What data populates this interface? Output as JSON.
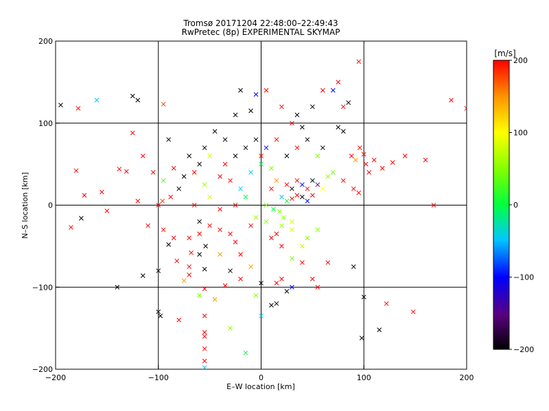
{
  "chart_data": {
    "type": "scatter",
    "title": "Tromsø 20171204 22:48:00–22:49:43",
    "subtitle": "RwPretec (8p) EXPERIMENTAL SKYMAP",
    "xlabel": "E–W location [km]",
    "ylabel": "N–S location [km]",
    "xlim": [
      -200,
      200
    ],
    "ylim": [
      -200,
      200
    ],
    "x_ticks": [
      -200,
      -100,
      0,
      100,
      200
    ],
    "y_ticks": [
      -200,
      -100,
      0,
      100,
      200
    ],
    "grid": true,
    "colorbar": {
      "label": "[m/s]",
      "range": [
        -200,
        200
      ],
      "ticks": [
        -200,
        -100,
        0,
        100,
        200
      ],
      "colormap": "rainbow (black–purple–blue–cyan–green–yellow–red)"
    },
    "marker_styles": [
      "cross (x)",
      "dot"
    ],
    "points": [
      {
        "x": -178,
        "y": 118,
        "v": 200,
        "m": "x"
      },
      {
        "x": -160,
        "y": 128,
        "v": -50,
        "m": "x"
      },
      {
        "x": -195,
        "y": 122,
        "v": -200,
        "m": "x"
      },
      {
        "x": -125,
        "y": 133,
        "v": -200,
        "m": "x"
      },
      {
        "x": -120,
        "y": 128,
        "v": -200,
        "m": "x"
      },
      {
        "x": -95,
        "y": 123,
        "v": 180,
        "m": "x"
      },
      {
        "x": -125,
        "y": 88,
        "v": 200,
        "m": "x"
      },
      {
        "x": -180,
        "y": 42,
        "v": 200,
        "m": "x"
      },
      {
        "x": -172,
        "y": 12,
        "v": 200,
        "m": "x"
      },
      {
        "x": -155,
        "y": 16,
        "v": 200,
        "m": "x"
      },
      {
        "x": -138,
        "y": 44,
        "v": 200,
        "m": "x"
      },
      {
        "x": -131,
        "y": 41,
        "v": 200,
        "m": "x"
      },
      {
        "x": -185,
        "y": -27,
        "v": 200,
        "m": "x"
      },
      {
        "x": -175,
        "y": -16,
        "v": -200,
        "m": "x"
      },
      {
        "x": -150,
        "y": -7,
        "v": 200,
        "m": "x"
      },
      {
        "x": -140,
        "y": -100,
        "v": -200,
        "m": "x"
      },
      {
        "x": -115,
        "y": -86,
        "v": -200,
        "m": "x"
      },
      {
        "x": -100,
        "y": -130,
        "v": -200,
        "m": "x"
      },
      {
        "x": -98,
        "y": -135,
        "v": -200,
        "m": "x"
      },
      {
        "x": -96,
        "y": 5,
        "v": 180,
        "m": "x"
      },
      {
        "x": -75,
        "y": -92,
        "v": 150,
        "m": "x"
      },
      {
        "x": -70,
        "y": -85,
        "v": 200,
        "m": "x"
      },
      {
        "x": -68,
        "y": -58,
        "v": 200,
        "m": "x"
      },
      {
        "x": -82,
        "y": -68,
        "v": 200,
        "m": "x"
      },
      {
        "x": -90,
        "y": -48,
        "v": -200,
        "m": "x"
      },
      {
        "x": -55,
        "y": -78,
        "v": -200,
        "m": "x"
      },
      {
        "x": -54,
        "y": -50,
        "v": -200,
        "m": "x"
      },
      {
        "x": -60,
        "y": -20,
        "v": -200,
        "m": "x"
      },
      {
        "x": -55,
        "y": 25,
        "v": 60,
        "m": "x"
      },
      {
        "x": -40,
        "y": 35,
        "v": 200,
        "m": "x"
      },
      {
        "x": -35,
        "y": 50,
        "v": 200,
        "m": "x"
      },
      {
        "x": -50,
        "y": 60,
        "v": 80,
        "m": "x"
      },
      {
        "x": -45,
        "y": 90,
        "v": -200,
        "m": "x"
      },
      {
        "x": -25,
        "y": 110,
        "v": -200,
        "m": "x"
      },
      {
        "x": -10,
        "y": 115,
        "v": -200,
        "m": "x"
      },
      {
        "x": -20,
        "y": 140,
        "v": -200,
        "m": "x"
      },
      {
        "x": -5,
        "y": 135,
        "v": -100,
        "m": "x"
      },
      {
        "x": 5,
        "y": 140,
        "v": 200,
        "m": "x"
      },
      {
        "x": 20,
        "y": 120,
        "v": 200,
        "m": "x"
      },
      {
        "x": 35,
        "y": 110,
        "v": -200,
        "m": "x"
      },
      {
        "x": 50,
        "y": 120,
        "v": -200,
        "m": "x"
      },
      {
        "x": 60,
        "y": 140,
        "v": 200,
        "m": "x"
      },
      {
        "x": 70,
        "y": 140,
        "v": -100,
        "m": "x"
      },
      {
        "x": 80,
        "y": 120,
        "v": 200,
        "m": "x"
      },
      {
        "x": 85,
        "y": 125,
        "v": -200,
        "m": "x"
      },
      {
        "x": 95,
        "y": 175,
        "v": 200,
        "m": "x"
      },
      {
        "x": 75,
        "y": 150,
        "v": 200,
        "m": "x"
      },
      {
        "x": 185,
        "y": 128,
        "v": 200,
        "m": "x"
      },
      {
        "x": 200,
        "y": 118,
        "v": 200,
        "m": "x"
      },
      {
        "x": 88,
        "y": 60,
        "v": 200,
        "m": "x"
      },
      {
        "x": 92,
        "y": 55,
        "v": 150,
        "m": "x"
      },
      {
        "x": 96,
        "y": 70,
        "v": 200,
        "m": "x"
      },
      {
        "x": 100,
        "y": 62,
        "v": 200,
        "m": "x"
      },
      {
        "x": 102,
        "y": 50,
        "v": 200,
        "m": "x"
      },
      {
        "x": 105,
        "y": 40,
        "v": 200,
        "m": "x"
      },
      {
        "x": 110,
        "y": 55,
        "v": 200,
        "m": "x"
      },
      {
        "x": 118,
        "y": 45,
        "v": 200,
        "m": "x"
      },
      {
        "x": 128,
        "y": 52,
        "v": 200,
        "m": "x"
      },
      {
        "x": 140,
        "y": 60,
        "v": 200,
        "m": "x"
      },
      {
        "x": 160,
        "y": 55,
        "v": 200,
        "m": "x"
      },
      {
        "x": 80,
        "y": 30,
        "v": 200,
        "m": "x"
      },
      {
        "x": 90,
        "y": 20,
        "v": 200,
        "m": "x"
      },
      {
        "x": 95,
        "y": 15,
        "v": 200,
        "m": "x"
      },
      {
        "x": 168,
        "y": 0,
        "v": 200,
        "m": "x"
      },
      {
        "x": 100,
        "y": -112,
        "v": -200,
        "m": "x"
      },
      {
        "x": 98,
        "y": -162,
        "v": -200,
        "m": "x"
      },
      {
        "x": 115,
        "y": -152,
        "v": -200,
        "m": "x"
      },
      {
        "x": 122,
        "y": -120,
        "v": 200,
        "m": "x"
      },
      {
        "x": 148,
        "y": -130,
        "v": 200,
        "m": "x"
      },
      {
        "x": 90,
        "y": -75,
        "v": -200,
        "m": "x"
      },
      {
        "x": 65,
        "y": -70,
        "v": 200,
        "m": "x"
      },
      {
        "x": 40,
        "y": -70,
        "v": 200,
        "m": "x"
      },
      {
        "x": 30,
        "y": -65,
        "v": 50,
        "m": "x"
      },
      {
        "x": 20,
        "y": -90,
        "v": 200,
        "m": "x"
      },
      {
        "x": 25,
        "y": -105,
        "v": -200,
        "m": "x"
      },
      {
        "x": 30,
        "y": -100,
        "v": -100,
        "m": "x"
      },
      {
        "x": 10,
        "y": -122,
        "v": -200,
        "m": "x"
      },
      {
        "x": 0,
        "y": -135,
        "v": -50,
        "m": "x"
      },
      {
        "x": -5,
        "y": -110,
        "v": 50,
        "m": "x"
      },
      {
        "x": -15,
        "y": -180,
        "v": 0,
        "m": "x"
      },
      {
        "x": -30,
        "y": -150,
        "v": 60,
        "m": "x"
      },
      {
        "x": -55,
        "y": -135,
        "v": 200,
        "m": "x"
      },
      {
        "x": -55,
        "y": -155,
        "v": 200,
        "m": "x"
      },
      {
        "x": -55,
        "y": -160,
        "v": 200,
        "m": "x"
      },
      {
        "x": -55,
        "y": -175,
        "v": 200,
        "m": "x"
      },
      {
        "x": -55,
        "y": -190,
        "v": 200,
        "m": "x"
      },
      {
        "x": -55,
        "y": -198,
        "v": -50,
        "m": "x"
      },
      {
        "x": -55,
        "y": -102,
        "v": 200,
        "m": "x"
      },
      {
        "x": -60,
        "y": -110,
        "v": 50,
        "m": "x"
      },
      {
        "x": -45,
        "y": -115,
        "v": 150,
        "m": "x"
      },
      {
        "x": -35,
        "y": -98,
        "v": 200,
        "m": "x"
      },
      {
        "x": -10,
        "y": -75,
        "v": 150,
        "m": "x"
      },
      {
        "x": -20,
        "y": -60,
        "v": 200,
        "m": "x"
      },
      {
        "x": -25,
        "y": -45,
        "v": 200,
        "m": "x"
      },
      {
        "x": -30,
        "y": -35,
        "v": 200,
        "m": "x"
      },
      {
        "x": 10,
        "y": -40,
        "v": 200,
        "m": "x"
      },
      {
        "x": 15,
        "y": -35,
        "v": 200,
        "m": "x"
      },
      {
        "x": 20,
        "y": -50,
        "v": 200,
        "m": "x"
      },
      {
        "x": 40,
        "y": -50,
        "v": 80,
        "m": "x"
      },
      {
        "x": 45,
        "y": -40,
        "v": 50,
        "m": "x"
      },
      {
        "x": 55,
        "y": -30,
        "v": 50,
        "m": "x"
      },
      {
        "x": 30,
        "y": -30,
        "v": 80,
        "m": "x"
      },
      {
        "x": 20,
        "y": -25,
        "v": 60,
        "m": "x"
      },
      {
        "x": 5,
        "y": -20,
        "v": 50,
        "m": "x"
      },
      {
        "x": -5,
        "y": -15,
        "v": 60,
        "m": "x"
      },
      {
        "x": -10,
        "y": -25,
        "v": 200,
        "m": "x"
      },
      {
        "x": 25,
        "y": 25,
        "v": 200,
        "m": "x"
      },
      {
        "x": 30,
        "y": 20,
        "v": -200,
        "m": "x"
      },
      {
        "x": 35,
        "y": 30,
        "v": 200,
        "m": "x"
      },
      {
        "x": 40,
        "y": 25,
        "v": -100,
        "m": "x"
      },
      {
        "x": 45,
        "y": 20,
        "v": 200,
        "m": "x"
      },
      {
        "x": 50,
        "y": 30,
        "v": -200,
        "m": "x"
      },
      {
        "x": 55,
        "y": 25,
        "v": -150,
        "m": "x"
      },
      {
        "x": 15,
        "y": 30,
        "v": 150,
        "m": "x"
      },
      {
        "x": 10,
        "y": 20,
        "v": 200,
        "m": "x"
      },
      {
        "x": 20,
        "y": 10,
        "v": -50,
        "m": "x"
      },
      {
        "x": 25,
        "y": 5,
        "v": 0,
        "m": "x"
      },
      {
        "x": 30,
        "y": 8,
        "v": 200,
        "m": "x"
      },
      {
        "x": 35,
        "y": 12,
        "v": 200,
        "m": "x"
      },
      {
        "x": 40,
        "y": 10,
        "v": -200,
        "m": "x"
      },
      {
        "x": 45,
        "y": 5,
        "v": -100,
        "m": "x"
      },
      {
        "x": 50,
        "y": 12,
        "v": 200,
        "m": "x"
      },
      {
        "x": 60,
        "y": 20,
        "v": 100,
        "m": "x"
      },
      {
        "x": 65,
        "y": 35,
        "v": 60,
        "m": "x"
      },
      {
        "x": 70,
        "y": 40,
        "v": 40,
        "m": "x"
      },
      {
        "x": 5,
        "y": 0,
        "v": 50,
        "m": "x"
      },
      {
        "x": 12,
        "y": -5,
        "v": 0,
        "m": "x"
      },
      {
        "x": 18,
        "y": -8,
        "v": 50,
        "m": "x"
      },
      {
        "x": 22,
        "y": -15,
        "v": 60,
        "m": "x"
      },
      {
        "x": 30,
        "y": -20,
        "v": 80,
        "m": "x"
      },
      {
        "x": -15,
        "y": 10,
        "v": 0,
        "m": "x"
      },
      {
        "x": -20,
        "y": 20,
        "v": -50,
        "m": "x"
      },
      {
        "x": -25,
        "y": 0,
        "v": 200,
        "m": "x"
      },
      {
        "x": -40,
        "y": -5,
        "v": 200,
        "m": "x"
      },
      {
        "x": -50,
        "y": 10,
        "v": 80,
        "m": "x"
      },
      {
        "x": -65,
        "y": 0,
        "v": 200,
        "m": "x"
      },
      {
        "x": -80,
        "y": 20,
        "v": -200,
        "m": "x"
      },
      {
        "x": -88,
        "y": 10,
        "v": 200,
        "m": "x"
      },
      {
        "x": -100,
        "y": 0,
        "v": 200,
        "m": "x"
      },
      {
        "x": -120,
        "y": 5,
        "v": 200,
        "m": "x"
      },
      {
        "x": -110,
        "y": -25,
        "v": 200,
        "m": "x"
      },
      {
        "x": -95,
        "y": -30,
        "v": 200,
        "m": "x"
      },
      {
        "x": -85,
        "y": -40,
        "v": 200,
        "m": "x"
      },
      {
        "x": -70,
        "y": -40,
        "v": 200,
        "m": "x"
      },
      {
        "x": -60,
        "y": -35,
        "v": 200,
        "m": "x"
      },
      {
        "x": -50,
        "y": -25,
        "v": 200,
        "m": "x"
      },
      {
        "x": -40,
        "y": -30,
        "v": 200,
        "m": "x"
      },
      {
        "x": -75,
        "y": 35,
        "v": -200,
        "m": "x"
      },
      {
        "x": -65,
        "y": 40,
        "v": 200,
        "m": "x"
      },
      {
        "x": -60,
        "y": 50,
        "v": -200,
        "m": "x"
      },
      {
        "x": -55,
        "y": 70,
        "v": -200,
        "m": "x"
      },
      {
        "x": -70,
        "y": 60,
        "v": -200,
        "m": "x"
      },
      {
        "x": -90,
        "y": 80,
        "v": -200,
        "m": "x"
      },
      {
        "x": -85,
        "y": 45,
        "v": 200,
        "m": "x"
      },
      {
        "x": -95,
        "y": 30,
        "v": 30,
        "m": "x"
      },
      {
        "x": -105,
        "y": 40,
        "v": 200,
        "m": "x"
      },
      {
        "x": -115,
        "y": 60,
        "v": 200,
        "m": "x"
      },
      {
        "x": -5,
        "y": 80,
        "v": -200,
        "m": "x"
      },
      {
        "x": 5,
        "y": 70,
        "v": -100,
        "m": "x"
      },
      {
        "x": 15,
        "y": 80,
        "v": 200,
        "m": "x"
      },
      {
        "x": 25,
        "y": 60,
        "v": -200,
        "m": "x"
      },
      {
        "x": 35,
        "y": 70,
        "v": 200,
        "m": "x"
      },
      {
        "x": 45,
        "y": 80,
        "v": -200,
        "m": "x"
      },
      {
        "x": 55,
        "y": 60,
        "v": 50,
        "m": "x"
      },
      {
        "x": 60,
        "y": 70,
        "v": -200,
        "m": "x"
      },
      {
        "x": 0,
        "y": 50,
        "v": 0,
        "m": "x"
      },
      {
        "x": 10,
        "y": 45,
        "v": 50,
        "m": "x"
      },
      {
        "x": -10,
        "y": 40,
        "v": -50,
        "m": "x"
      },
      {
        "x": -30,
        "y": 30,
        "v": 200,
        "m": "x"
      },
      {
        "x": -25,
        "y": 60,
        "v": -200,
        "m": "x"
      },
      {
        "x": -15,
        "y": 70,
        "v": -200,
        "m": "x"
      },
      {
        "x": -35,
        "y": 80,
        "v": -200,
        "m": "x"
      },
      {
        "x": 75,
        "y": 95,
        "v": -200,
        "m": "x"
      },
      {
        "x": 80,
        "y": 90,
        "v": -200,
        "m": "x"
      },
      {
        "x": 40,
        "y": 95,
        "v": -200,
        "m": "x"
      },
      {
        "x": 30,
        "y": 100,
        "v": 200,
        "m": "x"
      },
      {
        "x": -60,
        "y": -60,
        "v": -200,
        "m": "x"
      },
      {
        "x": -40,
        "y": -60,
        "v": 150,
        "m": "x"
      },
      {
        "x": -30,
        "y": -80,
        "v": -200,
        "m": "x"
      },
      {
        "x": -20,
        "y": -90,
        "v": 200,
        "m": "x"
      },
      {
        "x": 0,
        "y": -95,
        "v": -200,
        "m": "x"
      },
      {
        "x": 15,
        "y": -95,
        "v": 200,
        "m": "x"
      },
      {
        "x": 50,
        "y": -90,
        "v": 200,
        "m": "x"
      },
      {
        "x": 55,
        "y": -100,
        "v": 200,
        "m": "x"
      },
      {
        "x": 15,
        "y": -120,
        "v": -200,
        "m": "x"
      },
      {
        "x": -80,
        "y": -140,
        "v": 200,
        "m": "x"
      },
      {
        "x": -70,
        "y": -75,
        "v": 200,
        "m": "x"
      },
      {
        "x": -100,
        "y": -80,
        "v": -200,
        "m": "x"
      },
      {
        "x": 0,
        "y": 60,
        "v": 200,
        "m": "x"
      }
    ]
  }
}
